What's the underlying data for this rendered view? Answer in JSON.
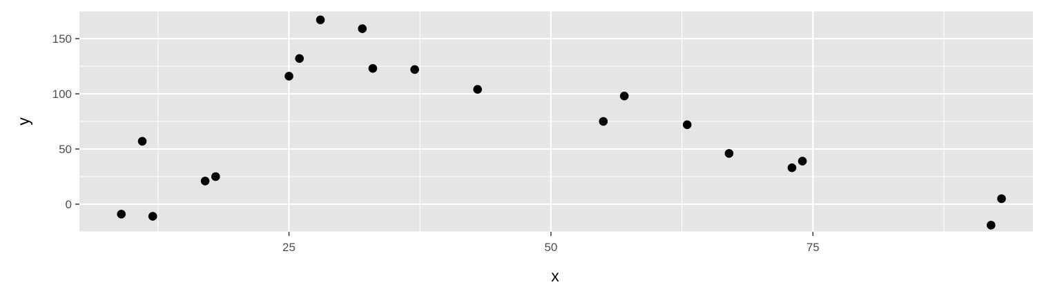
{
  "chart_data": {
    "type": "scatter",
    "title": "",
    "xlabel": "x",
    "ylabel": "y",
    "xlim": [
      5,
      96
    ],
    "ylim": [
      -25,
      175
    ],
    "x_ticks": [
      25,
      50,
      75
    ],
    "y_ticks": [
      0,
      50,
      100,
      150
    ],
    "grid": true,
    "legend": "none",
    "colors": {
      "panel_background": "#e5e5e5",
      "grid": "#ffffff",
      "point": "#000000",
      "tick_label": "#4d4d4d",
      "tick_mark": "#333333"
    },
    "points": [
      {
        "x": 9,
        "y": -9
      },
      {
        "x": 11,
        "y": 57
      },
      {
        "x": 12,
        "y": -11
      },
      {
        "x": 17,
        "y": 21
      },
      {
        "x": 18,
        "y": 25
      },
      {
        "x": 25,
        "y": 116
      },
      {
        "x": 26,
        "y": 132
      },
      {
        "x": 28,
        "y": 167
      },
      {
        "x": 32,
        "y": 159
      },
      {
        "x": 33,
        "y": 123
      },
      {
        "x": 37,
        "y": 122
      },
      {
        "x": 43,
        "y": 104
      },
      {
        "x": 55,
        "y": 75
      },
      {
        "x": 57,
        "y": 98
      },
      {
        "x": 63,
        "y": 72
      },
      {
        "x": 67,
        "y": 46
      },
      {
        "x": 73,
        "y": 33
      },
      {
        "x": 74,
        "y": 39
      },
      {
        "x": 92,
        "y": -19
      },
      {
        "x": 93,
        "y": 5
      }
    ]
  }
}
